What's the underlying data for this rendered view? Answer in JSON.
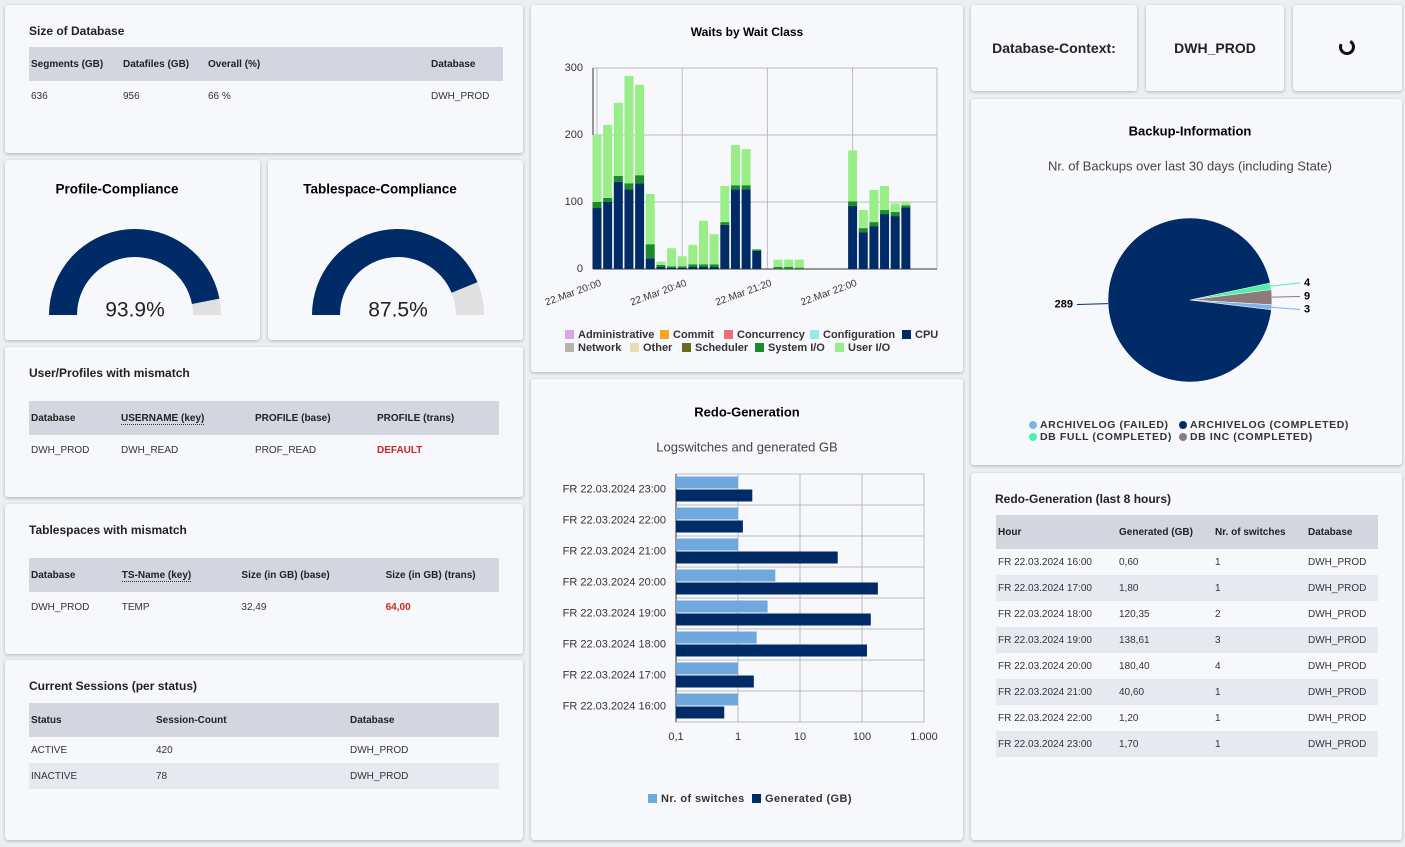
{
  "size_of_database": {
    "title": "Size of Database",
    "headers": [
      "Segments (GB)",
      "Datafiles (GB)",
      "Overall (%)",
      "Database"
    ],
    "rows": [
      [
        "636",
        "956",
        {
          "value": 66,
          "label": "66 %"
        },
        "DWH_PROD"
      ]
    ]
  },
  "database_context": {
    "label": "Database-Context:",
    "value": "DWH_PROD"
  },
  "user_profiles_mismatch": {
    "title": "User/Profiles with mismatch",
    "headers": [
      "Database",
      "USERNAME (key)",
      "PROFILE (base)",
      "PROFILE (trans)"
    ],
    "rows": [
      [
        "DWH_PROD",
        "DWH_READ",
        "PROF_READ",
        "DEFAULT"
      ]
    ]
  },
  "tablespaces_mismatch": {
    "title": "Tablespaces with mismatch",
    "headers": [
      "Database",
      "TS-Name (key)",
      "Size (in GB) (base)",
      "Size (in GB) (trans)"
    ],
    "rows": [
      [
        "DWH_PROD",
        "TEMP",
        "32,49",
        "64,00"
      ]
    ]
  },
  "current_sessions": {
    "title": "Current Sessions (per status)",
    "headers": [
      "Status",
      "Session-Count",
      "Database"
    ],
    "rows": [
      [
        "ACTIVE",
        "420",
        "DWH_PROD"
      ],
      [
        "INACTIVE",
        "78",
        "DWH_PROD"
      ]
    ]
  },
  "redo_table": {
    "title": "Redo-Generation (last 8 hours)",
    "headers": [
      "Hour",
      "Generated (GB)",
      "Nr. of switches",
      "Database"
    ],
    "rows": [
      [
        "FR 22.03.2024 16:00",
        "0,60",
        "1",
        "DWH_PROD"
      ],
      [
        "FR 22.03.2024 17:00",
        "1,80",
        "1",
        "DWH_PROD"
      ],
      [
        "FR 22.03.2024 18:00",
        "120,35",
        "2",
        "DWH_PROD"
      ],
      [
        "FR 22.03.2024 19:00",
        "138,61",
        "3",
        "DWH_PROD"
      ],
      [
        "FR 22.03.2024 20:00",
        "180,40",
        "4",
        "DWH_PROD"
      ],
      [
        "FR 22.03.2024 21:00",
        "40,60",
        "1",
        "DWH_PROD"
      ],
      [
        "FR 22.03.2024 22:00",
        "1,20",
        "1",
        "DWH_PROD"
      ],
      [
        "FR 22.03.2024 23:00",
        "1,70",
        "1",
        "DWH_PROD"
      ]
    ]
  },
  "chart_data": [
    {
      "type": "gauge",
      "title": "Profile-Compliance",
      "value": 93.9,
      "value_label": "93.9%",
      "ylim": [
        0,
        100
      ],
      "color": "#002b66"
    },
    {
      "type": "gauge",
      "title": "Tablespace-Compliance",
      "value": 87.5,
      "value_label": "87.5%",
      "ylim": [
        0,
        100
      ],
      "color": "#002b66"
    },
    {
      "type": "bar",
      "stacked": true,
      "title": "Waits by Wait Class",
      "grid": true,
      "categories": [
        "22.Mar 20:00",
        null,
        null,
        null,
        null,
        null,
        null,
        null,
        "22.Mar 20:40",
        null,
        null,
        null,
        null,
        null,
        null,
        null,
        "22.Mar 21:20",
        null,
        null,
        null,
        null,
        null,
        null,
        null,
        "22.Mar 22:00",
        null,
        null,
        null,
        null,
        null
      ],
      "ylim": [
        0,
        300
      ],
      "yticks": [
        0,
        100,
        200,
        300
      ],
      "series": [
        {
          "name": "Administrative",
          "color": "#d9a6e8",
          "values": [
            0,
            0,
            0,
            0,
            0,
            0,
            0,
            0,
            0,
            0,
            0,
            0,
            0,
            0,
            0,
            0,
            null,
            0,
            0,
            0,
            null,
            null,
            null,
            null,
            0,
            0,
            0,
            0,
            0,
            0
          ]
        },
        {
          "name": "Commit",
          "color": "#f5a623",
          "values": [
            0,
            0,
            0,
            0,
            0,
            0,
            0,
            0,
            0,
            0,
            0,
            0,
            0,
            0,
            0,
            0,
            null,
            0,
            0,
            0,
            null,
            null,
            null,
            null,
            0,
            0,
            0,
            0,
            0,
            0
          ]
        },
        {
          "name": "Concurrency",
          "color": "#ee6e73",
          "values": [
            0,
            0,
            0,
            0,
            0,
            0,
            0,
            0,
            0,
            0,
            0,
            0,
            0,
            0,
            0,
            0,
            null,
            0,
            0,
            0,
            null,
            null,
            null,
            null,
            0,
            0,
            0,
            0,
            0,
            0
          ]
        },
        {
          "name": "Configuration",
          "color": "#9be7ef",
          "values": [
            0,
            0,
            0,
            0,
            0,
            0,
            0,
            0,
            0,
            0,
            0,
            0,
            0,
            0,
            0,
            0,
            null,
            0,
            0,
            0,
            null,
            null,
            null,
            null,
            0,
            0,
            0,
            0,
            0,
            0
          ]
        },
        {
          "name": "CPU",
          "color": "#002b66",
          "values": [
            91,
            100,
            130,
            119,
            128,
            16,
            3,
            2,
            2,
            3,
            3,
            3,
            66,
            119,
            119,
            27,
            null,
            0,
            0,
            0,
            null,
            null,
            null,
            null,
            94,
            55,
            64,
            82,
            79,
            92
          ]
        },
        {
          "name": "Network",
          "color": "#b3b3b3",
          "values": [
            0,
            0,
            0,
            0,
            0,
            0,
            0,
            0,
            0,
            0,
            0,
            0,
            0,
            0,
            0,
            0,
            null,
            0,
            0,
            0,
            null,
            null,
            null,
            null,
            0,
            0,
            0,
            0,
            0,
            0
          ]
        },
        {
          "name": "Other",
          "color": "#e8e0b0",
          "values": [
            0,
            0,
            0,
            0,
            0,
            0,
            0,
            0,
            0,
            0,
            0,
            0,
            0,
            0,
            0,
            0,
            null,
            0,
            0,
            0,
            null,
            null,
            null,
            null,
            0,
            0,
            0,
            0,
            0,
            0
          ]
        },
        {
          "name": "Scheduler",
          "color": "#6b6b1f",
          "values": [
            0,
            0,
            0,
            0,
            0,
            0,
            0,
            0,
            0,
            0,
            0,
            0,
            0,
            0,
            0,
            0,
            null,
            0,
            0,
            0,
            null,
            null,
            null,
            null,
            0,
            0,
            0,
            0,
            0,
            0
          ]
        },
        {
          "name": "System I/O",
          "color": "#1a8a2a",
          "values": [
            9,
            6,
            9,
            9,
            12,
            21,
            3,
            2,
            2,
            4,
            4,
            4,
            4,
            6,
            6,
            2,
            null,
            3,
            3,
            2,
            null,
            null,
            null,
            null,
            7,
            6,
            6,
            6,
            6,
            3
          ]
        },
        {
          "name": "User I/O",
          "color": "#99ee88",
          "values": [
            100,
            109,
            109,
            160,
            135,
            75,
            5,
            27,
            15,
            29,
            65,
            45,
            54,
            60,
            54,
            1,
            null,
            11,
            11,
            12,
            null,
            null,
            null,
            null,
            76,
            27,
            48,
            36,
            13,
            6
          ]
        }
      ]
    },
    {
      "type": "bar",
      "horizontal": true,
      "title": "Redo-Generation",
      "subtitle": "Logswitches and generated GB",
      "grid": true,
      "xscale": "log",
      "categories": [
        "FR 22.03.2024 23:00",
        "FR 22.03.2024 22:00",
        "FR 22.03.2024 21:00",
        "FR 22.03.2024 20:00",
        "FR 22.03.2024 19:00",
        "FR 22.03.2024 18:00",
        "FR 22.03.2024 17:00",
        "FR 22.03.2024 16:00"
      ],
      "xlim": [
        0.1,
        1000
      ],
      "xticks": [
        {
          "value": 0.1,
          "label": "0,1"
        },
        1,
        10,
        100,
        {
          "value": 1000,
          "label": "1.000"
        }
      ],
      "series": [
        {
          "name": "Nr. of switches",
          "color": "#6fa8dc",
          "values": [
            1,
            1,
            1,
            4,
            3,
            2,
            1,
            1
          ]
        },
        {
          "name": "Generated (GB)",
          "color": "#002b66",
          "values": [
            1.7,
            1.2,
            40.6,
            180.4,
            138.61,
            120.35,
            1.8,
            0.6
          ]
        }
      ]
    },
    {
      "type": "pie",
      "title": "Backup-Information",
      "subtitle": "Nr. of Backups over last 30 days (including State)",
      "categories": [
        "ARCHIVELOG (FAILED)",
        "ARCHIVELOG (COMPLETED)",
        "DB FULL (COMPLETED)",
        "DB INC (COMPLETED)"
      ],
      "values": [
        3,
        289,
        4,
        9
      ],
      "colors": [
        "#7cb5ec",
        "#002b66",
        "#4ff0a8",
        "#8d7a7a"
      ]
    }
  ]
}
